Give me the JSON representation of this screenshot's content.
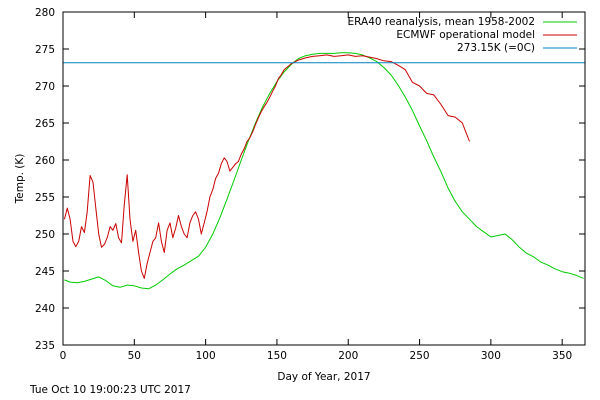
{
  "chart_data": {
    "type": "line",
    "xlabel": "Day of Year, 2017",
    "ylabel": "Temp. (K)",
    "xlim": [
      0,
      366
    ],
    "ylim": [
      235,
      280
    ],
    "xticks": [
      0,
      50,
      100,
      150,
      200,
      250,
      300,
      350
    ],
    "yticks": [
      235,
      240,
      245,
      250,
      255,
      260,
      265,
      270,
      275,
      280
    ],
    "grid": false,
    "legend_position": "top-right",
    "series": [
      {
        "name": "ERA40 reanalysis, mean 1958-2002",
        "color": "#00cc00",
        "x": [
          1,
          5,
          10,
          15,
          20,
          25,
          30,
          35,
          40,
          45,
          50,
          55,
          60,
          65,
          70,
          75,
          80,
          85,
          90,
          95,
          100,
          105,
          110,
          115,
          120,
          125,
          130,
          135,
          140,
          145,
          150,
          155,
          160,
          165,
          170,
          175,
          180,
          185,
          190,
          195,
          200,
          205,
          210,
          215,
          220,
          225,
          230,
          235,
          240,
          245,
          250,
          255,
          260,
          265,
          270,
          275,
          280,
          285,
          290,
          295,
          300,
          305,
          310,
          315,
          320,
          325,
          330,
          335,
          340,
          345,
          350,
          355,
          360,
          365
        ],
        "y": [
          243.8,
          243.5,
          243.4,
          243.6,
          243.9,
          244.2,
          243.7,
          243.0,
          242.8,
          243.1,
          243.0,
          242.7,
          242.6,
          243.1,
          243.8,
          244.6,
          245.3,
          245.8,
          246.4,
          247.0,
          248.2,
          250.0,
          252.2,
          254.7,
          257.3,
          260.0,
          262.6,
          265.0,
          267.2,
          269.0,
          270.6,
          271.9,
          272.9,
          273.7,
          274.1,
          274.3,
          274.4,
          274.4,
          274.4,
          274.5,
          274.5,
          274.4,
          274.2,
          273.8,
          273.3,
          272.5,
          271.5,
          270.1,
          268.5,
          266.7,
          264.6,
          262.6,
          260.4,
          258.4,
          256.2,
          254.4,
          253.0,
          252.0,
          251.0,
          250.3,
          249.6,
          249.8,
          250.0,
          249.2,
          248.2,
          247.4,
          246.9,
          246.2,
          245.8,
          245.3,
          244.9,
          244.7,
          244.4,
          244.0
        ]
      },
      {
        "name": "ECMWF operational model",
        "color": "#cc0000",
        "x": [
          1,
          3,
          5,
          7,
          9,
          11,
          13,
          15,
          17,
          19,
          21,
          23,
          25,
          27,
          29,
          31,
          33,
          35,
          37,
          39,
          41,
          43,
          45,
          47,
          49,
          51,
          53,
          55,
          57,
          59,
          61,
          63,
          65,
          67,
          69,
          71,
          73,
          75,
          77,
          79,
          81,
          83,
          85,
          87,
          89,
          91,
          93,
          95,
          97,
          99,
          101,
          103,
          105,
          107,
          109,
          111,
          113,
          115,
          117,
          119,
          121,
          123,
          125,
          127,
          129,
          131,
          133,
          135,
          137,
          139,
          141,
          143,
          145,
          147,
          149,
          151,
          153,
          155,
          160,
          165,
          170,
          175,
          180,
          185,
          190,
          195,
          200,
          205,
          210,
          215,
          220,
          225,
          230,
          235,
          240,
          245,
          250,
          255,
          260,
          265,
          270,
          275,
          280,
          285
        ],
        "y": [
          252.0,
          253.5,
          252.0,
          249.0,
          248.3,
          249.0,
          251.0,
          250.2,
          253.0,
          257.9,
          257.0,
          253.5,
          250.0,
          248.2,
          248.6,
          249.5,
          251.0,
          250.5,
          251.4,
          249.5,
          248.8,
          254.0,
          258.0,
          252.0,
          249.0,
          250.5,
          247.5,
          245.0,
          244.0,
          246.0,
          247.5,
          249.0,
          249.5,
          251.5,
          249.0,
          247.5,
          250.5,
          251.5,
          249.5,
          250.8,
          252.5,
          251.0,
          250.0,
          249.5,
          251.5,
          252.5,
          253.0,
          252.0,
          250.0,
          251.5,
          253.0,
          255.0,
          256.0,
          257.5,
          258.2,
          259.5,
          260.3,
          259.8,
          258.5,
          259.0,
          259.5,
          259.8,
          260.8,
          261.5,
          262.5,
          263.0,
          263.8,
          264.8,
          265.7,
          266.5,
          267.2,
          267.8,
          268.5,
          269.3,
          270.0,
          271.0,
          271.5,
          272.2,
          273.0,
          273.5,
          273.8,
          274.0,
          274.1,
          274.2,
          274.0,
          274.1,
          274.2,
          274.0,
          274.1,
          273.9,
          273.7,
          273.4,
          273.3,
          272.8,
          272.2,
          270.5,
          270.0,
          269.0,
          268.8,
          267.5,
          266.0,
          265.8,
          265.0,
          262.5
        ]
      },
      {
        "name": "273.15K (=0C)",
        "color": "#0080c0",
        "y_constant": 273.15
      }
    ]
  },
  "footer": {
    "timestamp": "Tue Oct 10 19:00:23 UTC 2017"
  }
}
